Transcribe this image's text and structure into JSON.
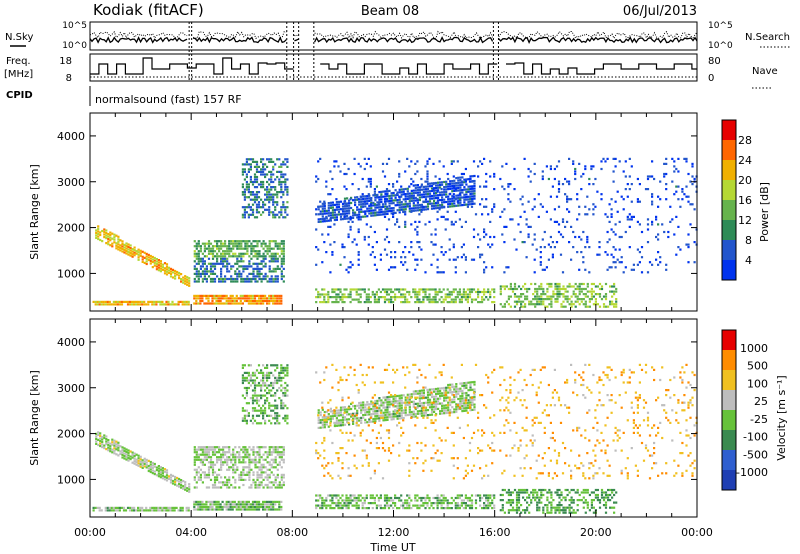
{
  "header": {
    "station": "Kodiak (fitACF)",
    "beam": "Beam 08",
    "date": "06/Jul/2013"
  },
  "strip": {
    "nsky_label": "N.Sky",
    "nsky_ticks": [
      "10^5",
      "10^0"
    ],
    "nsearch_label": "N.Search",
    "nsearch_ticks": [
      "10^5",
      "10^0"
    ],
    "freq_label": "Freq.",
    "freq_unit": "[MHz]",
    "freq_ticks": [
      "18",
      "8"
    ],
    "nave_label": "Nave",
    "nave_ticks": [
      "80",
      "0"
    ],
    "cpid_label": "CPID",
    "cpid_text": "normalsound (fast) 157 RF"
  },
  "colors": {
    "power": [
      "#0033ee",
      "#2255cc",
      "#2e8b57",
      "#66b34d",
      "#b5d834",
      "#f0b000",
      "#ff6600",
      "#e60000"
    ],
    "velocity": [
      "#1f3fb3",
      "#2f5fd0",
      "#3a8a50",
      "#66c23a",
      "#bdbdbd",
      "#f0c020",
      "#ff8c00",
      "#e60000"
    ]
  },
  "chart_data": [
    {
      "type": "heatmap",
      "name": "power",
      "ylabel": "Slant Range [km]",
      "yticks": [
        "4000",
        "3000",
        "2000",
        "1000"
      ],
      "ylim": [
        180,
        4500
      ],
      "xlim": [
        0,
        24
      ],
      "colorbar": {
        "label": "Power [dB]",
        "ticks": [
          "28",
          "24",
          "20",
          "16",
          "12",
          "8",
          "4"
        ],
        "range": [
          0,
          30
        ]
      },
      "bands": [
        {
          "x": [
            0.1,
            3.9
          ],
          "y": [
            300,
            360
          ],
          "value": 20,
          "density": 0.8
        },
        {
          "x": [
            4.0,
            7.6
          ],
          "y": [
            320,
            520
          ],
          "value": 22,
          "density": 0.9
        },
        {
          "x": [
            0.2,
            3.9
          ],
          "y_start": [
            2050,
            1750
          ],
          "y_end": [
            900,
            700
          ],
          "value": 20,
          "density": 0.85
        },
        {
          "x": [
            4.1,
            7.7
          ],
          "y": [
            1350,
            1700
          ],
          "value": 12,
          "density": 0.7
        },
        {
          "x": [
            4.1,
            7.7
          ],
          "y": [
            800,
            1300
          ],
          "value": 8,
          "density": 0.6
        },
        {
          "x": [
            6.0,
            7.8
          ],
          "y": [
            2200,
            3500
          ],
          "value": 8,
          "density": 0.5
        },
        {
          "x": [
            9.0,
            15.2
          ],
          "y_start": [
            2100,
            2500
          ],
          "y_end": [
            2500,
            3150
          ],
          "value": 5,
          "density": 0.75
        },
        {
          "x": [
            8.9,
            16.0
          ],
          "y": [
            350,
            650
          ],
          "value": 14,
          "density": 0.6
        },
        {
          "x": [
            16.2,
            20.8
          ],
          "y": [
            250,
            800
          ],
          "value": 14,
          "density": 0.45
        },
        {
          "x": [
            8.9,
            24.0
          ],
          "y": [
            1000,
            3500
          ],
          "value": 4,
          "density": 0.09
        }
      ]
    },
    {
      "type": "heatmap",
      "name": "velocity",
      "ylabel": "Slant Range [km]",
      "xlabel": "Time UT",
      "yticks": [
        "4000",
        "3000",
        "2000",
        "1000"
      ],
      "ylim": [
        180,
        4500
      ],
      "xlim": [
        0,
        24
      ],
      "xticks": [
        "00:00",
        "04:00",
        "08:00",
        "12:00",
        "16:00",
        "20:00",
        "00:00"
      ],
      "colorbar": {
        "label": "Velocity [m s⁻¹]",
        "ticks": [
          "1000",
          "500",
          "100",
          "25",
          "-25",
          "-100",
          "-500",
          "-1000"
        ],
        "range": [
          -1200,
          1200
        ]
      },
      "bands": [
        {
          "x": [
            0.1,
            3.9
          ],
          "y": [
            300,
            360
          ],
          "value": -60,
          "density": 0.8
        },
        {
          "x": [
            4.0,
            7.6
          ],
          "y": [
            320,
            520
          ],
          "value": -150,
          "density": 0.9
        },
        {
          "x": [
            0.2,
            3.9
          ],
          "y_start": [
            2050,
            1750
          ],
          "y_end": [
            900,
            700
          ],
          "value": 60,
          "density": 0.85
        },
        {
          "x": [
            4.1,
            7.7
          ],
          "y": [
            1350,
            1700
          ],
          "value": 0,
          "density": 0.7
        },
        {
          "x": [
            4.1,
            7.7
          ],
          "y": [
            800,
            1300
          ],
          "value": 0,
          "density": 0.5
        },
        {
          "x": [
            6.0,
            7.8
          ],
          "y": [
            2200,
            3500
          ],
          "value": -200,
          "density": 0.5
        },
        {
          "x": [
            9.0,
            15.2
          ],
          "y_start": [
            2100,
            2500
          ],
          "y_end": [
            2500,
            3150
          ],
          "value": -40,
          "density": 0.75
        },
        {
          "x": [
            8.9,
            16.0
          ],
          "y": [
            350,
            650
          ],
          "value": -150,
          "density": 0.6
        },
        {
          "x": [
            16.2,
            20.8
          ],
          "y": [
            250,
            800
          ],
          "value": -300,
          "density": 0.45
        },
        {
          "x": [
            8.9,
            24.0
          ],
          "y": [
            1000,
            3500
          ],
          "value": 500,
          "density": 0.09
        }
      ]
    }
  ]
}
